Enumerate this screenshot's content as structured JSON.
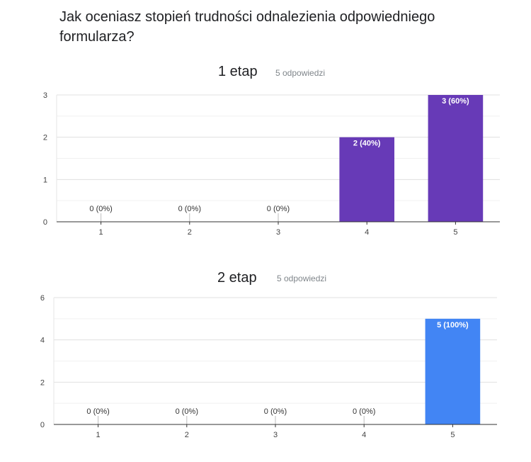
{
  "question": "Jak oceniasz stopień trudności odnalezienia odpowiedniego formularza?",
  "chart_data": [
    {
      "type": "bar",
      "title": "1 etap",
      "subtitle": "5 odpowiedzi",
      "categories": [
        "1",
        "2",
        "3",
        "4",
        "5"
      ],
      "values": [
        0,
        0,
        0,
        2,
        3
      ],
      "labels": [
        "0 (0%)",
        "0 (0%)",
        "0 (0%)",
        "2 (40%)",
        "3 (60%)"
      ],
      "yticks": [
        "0",
        "1",
        "2",
        "3"
      ],
      "ylim": [
        0,
        3
      ],
      "color": "#673ab7",
      "grid": true
    },
    {
      "type": "bar",
      "title": "2 etap",
      "subtitle": "5 odpowiedzi",
      "categories": [
        "1",
        "2",
        "3",
        "4",
        "5"
      ],
      "values": [
        0,
        0,
        0,
        0,
        5
      ],
      "labels": [
        "0 (0%)",
        "0 (0%)",
        "0 (0%)",
        "0 (0%)",
        "5 (100%)"
      ],
      "yticks": [
        "0",
        "2",
        "4",
        "6"
      ],
      "ylim": [
        0,
        6
      ],
      "color": "#4285f4",
      "grid": true
    }
  ]
}
